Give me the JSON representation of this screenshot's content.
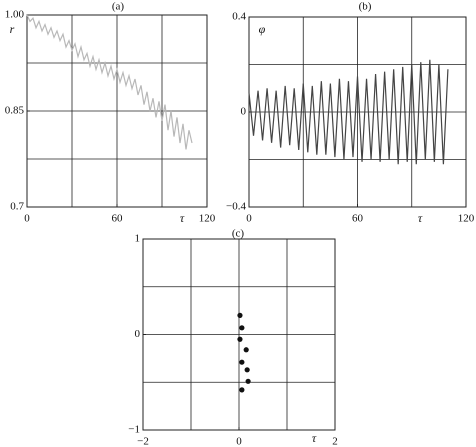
{
  "chart_data": [
    {
      "type": "line",
      "title": "(a)",
      "xlabel": "τ",
      "ylabel": "r",
      "x": [
        0,
        2,
        4,
        6,
        8,
        10,
        12,
        14,
        16,
        18,
        20,
        22,
        24,
        26,
        28,
        30,
        32,
        34,
        36,
        38,
        40,
        42,
        44,
        46,
        48,
        50,
        52,
        54,
        56,
        58,
        60,
        62,
        64,
        66,
        68,
        70,
        72,
        74,
        76,
        78,
        80,
        82,
        84,
        86,
        88,
        90,
        92,
        94,
        96,
        98,
        100,
        102,
        104,
        106,
        108,
        110
      ],
      "series": [
        {
          "name": "r",
          "color": "#b8b8b8",
          "values": [
            1.0,
            0.99,
            0.995,
            0.98,
            0.99,
            0.975,
            0.985,
            0.97,
            0.98,
            0.965,
            0.975,
            0.96,
            0.97,
            0.95,
            0.96,
            0.945,
            0.955,
            0.935,
            0.95,
            0.93,
            0.94,
            0.92,
            0.935,
            0.915,
            0.93,
            0.91,
            0.925,
            0.905,
            0.92,
            0.9,
            0.915,
            0.895,
            0.91,
            0.89,
            0.905,
            0.885,
            0.9,
            0.875,
            0.89,
            0.86,
            0.88,
            0.85,
            0.87,
            0.84,
            0.865,
            0.835,
            0.86,
            0.82,
            0.85,
            0.81,
            0.84,
            0.8,
            0.83,
            0.79,
            0.82,
            0.8
          ]
        }
      ],
      "xlim": [
        0,
        120
      ],
      "xticks": [
        0,
        60,
        120
      ],
      "xgrid": [
        30,
        60,
        90
      ],
      "ylim": [
        0.7,
        1.0
      ],
      "yticks": [
        0.7,
        0.85,
        {
          "value": 1.0,
          "label": "1.00"
        }
      ],
      "ygrid": [
        0.775,
        0.85,
        0.925
      ]
    },
    {
      "type": "line",
      "title": "(b)",
      "xlabel": "τ",
      "ylabel": "φ",
      "x": [
        0,
        2.5,
        5,
        7.5,
        10,
        12.5,
        15,
        17.5,
        20,
        22.5,
        25,
        27.5,
        30,
        32.5,
        35,
        37.5,
        40,
        42.5,
        45,
        47.5,
        50,
        52.5,
        55,
        57.5,
        60,
        62.5,
        65,
        67.5,
        70,
        72.5,
        75,
        77.5,
        80,
        82.5,
        85,
        87.5,
        90,
        92.5,
        95,
        97.5,
        100,
        102.5,
        105,
        107.5,
        110
      ],
      "series": [
        {
          "name": "φ",
          "color": "#444444",
          "values": [
            0.08,
            -0.1,
            0.09,
            -0.12,
            0.1,
            -0.13,
            0.09,
            -0.15,
            0.11,
            -0.14,
            0.1,
            -0.16,
            0.12,
            -0.17,
            0.11,
            -0.18,
            0.13,
            -0.18,
            0.12,
            -0.19,
            0.14,
            -0.2,
            0.13,
            -0.19,
            0.15,
            -0.21,
            0.14,
            -0.2,
            0.16,
            -0.21,
            0.17,
            -0.2,
            0.18,
            -0.22,
            0.19,
            -0.21,
            0.2,
            -0.22,
            0.21,
            -0.2,
            0.22,
            -0.21,
            0.2,
            -0.22,
            0.18
          ]
        }
      ],
      "xlim": [
        0,
        120
      ],
      "xticks": [
        0,
        60,
        120
      ],
      "xgrid": [
        30,
        60,
        90
      ],
      "ylim": [
        -0.4,
        0.4
      ],
      "yticks": [
        {
          "value": -0.4,
          "label": "−0.4"
        },
        0,
        0.4
      ],
      "ygrid": [
        -0.2,
        0,
        0.2
      ]
    },
    {
      "type": "scatter",
      "title": "(c)",
      "xlabel": "τ",
      "x": [
        0.02,
        0.06,
        0.02,
        0.15,
        0.06,
        0.17,
        0.19,
        0.06
      ],
      "series": [
        {
          "name": "points",
          "color": "#111111",
          "values": [
            0.2,
            0.07,
            -0.05,
            -0.16,
            -0.29,
            -0.37,
            -0.49,
            -0.58
          ]
        }
      ],
      "xlim": [
        -2,
        2
      ],
      "xticks": [
        {
          "value": -2,
          "label": "−2"
        },
        0,
        2
      ],
      "xgrid": [
        -1,
        0,
        1
      ],
      "ylim": [
        -1,
        1
      ],
      "yticks": [
        {
          "value": -1,
          "label": "−1"
        },
        0,
        1
      ],
      "ygrid": [
        -0.5,
        0,
        0.5
      ]
    }
  ]
}
